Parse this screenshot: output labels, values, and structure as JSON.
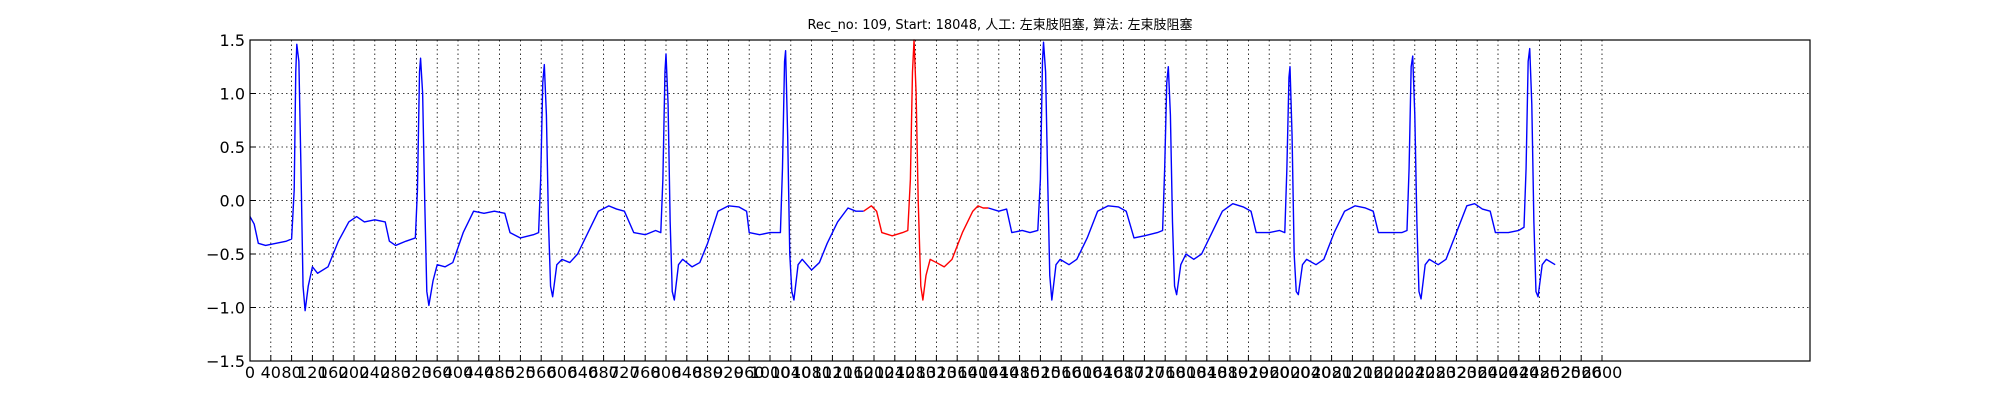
{
  "chart_data": {
    "type": "line",
    "title": "Rec_no: 109, Start: 18048, 人工: 左束肢阻塞, 算法: 左束肢阻塞",
    "xlabel": "",
    "ylabel": "",
    "xlim": [
      0,
      3000
    ],
    "ylim": [
      -1.5,
      1.5
    ],
    "yticks": [
      1.5,
      1.0,
      0.5,
      0.0,
      -0.5,
      -1.0,
      -1.5
    ],
    "ytick_labels": [
      "1.5",
      "1.0",
      "0.5",
      "0.0",
      "−0.5",
      "−1.0",
      "−1.5"
    ],
    "xticks": [
      0,
      40,
      80,
      120,
      160,
      200,
      240,
      280,
      320,
      360,
      400,
      440,
      480,
      520,
      560,
      600,
      640,
      680,
      720,
      760,
      800,
      840,
      880,
      920,
      960,
      1000,
      1040,
      1080,
      1120,
      1160,
      1200,
      1240,
      1280,
      1320,
      1360,
      1400,
      1440,
      1480,
      1520,
      1560,
      1600,
      1640,
      1680,
      1720,
      1760,
      1800,
      1840,
      1880,
      1920,
      1960,
      2000,
      2040,
      2080,
      2120,
      2160,
      2200,
      2240,
      2280,
      2320,
      2360,
      2400,
      2440,
      2480,
      2520,
      2560,
      2600
    ],
    "grid": true,
    "series_colors": {
      "normal": "#0000ff",
      "highlight": "#ff0000"
    },
    "highlight_range": [
      1180,
      1420
    ],
    "series": [
      {
        "color": "#0000ff",
        "points": [
          [
            0,
            -0.15
          ],
          [
            8,
            -0.22
          ],
          [
            16,
            -0.4
          ],
          [
            30,
            -0.42
          ],
          [
            50,
            -0.4
          ],
          [
            70,
            -0.38
          ],
          [
            80,
            -0.36
          ],
          [
            85,
            0.1
          ],
          [
            88,
            1.2
          ],
          [
            90,
            1.46
          ],
          [
            94,
            1.3
          ],
          [
            98,
            0.3
          ],
          [
            102,
            -0.8
          ],
          [
            106,
            -1.03
          ],
          [
            112,
            -0.8
          ],
          [
            120,
            -0.62
          ],
          [
            130,
            -0.68
          ],
          [
            150,
            -0.62
          ],
          [
            170,
            -0.38
          ],
          [
            190,
            -0.2
          ],
          [
            205,
            -0.15
          ],
          [
            220,
            -0.2
          ],
          [
            240,
            -0.18
          ],
          [
            260,
            -0.2
          ],
          [
            268,
            -0.38
          ],
          [
            280,
            -0.42
          ],
          [
            300,
            -0.38
          ],
          [
            318,
            -0.35
          ],
          [
            322,
            0.1
          ],
          [
            326,
            1.2
          ],
          [
            328,
            1.33
          ],
          [
            332,
            1.0
          ],
          [
            336,
            0.0
          ],
          [
            340,
            -0.85
          ],
          [
            344,
            -0.98
          ],
          [
            352,
            -0.75
          ],
          [
            360,
            -0.6
          ],
          [
            375,
            -0.62
          ],
          [
            390,
            -0.58
          ],
          [
            410,
            -0.3
          ],
          [
            430,
            -0.1
          ],
          [
            450,
            -0.12
          ],
          [
            470,
            -0.1
          ],
          [
            490,
            -0.12
          ],
          [
            500,
            -0.3
          ],
          [
            520,
            -0.35
          ],
          [
            545,
            -0.32
          ],
          [
            555,
            -0.3
          ],
          [
            559,
            0.2
          ],
          [
            563,
            1.1
          ],
          [
            566,
            1.27
          ],
          [
            570,
            0.8
          ],
          [
            574,
            -0.2
          ],
          [
            578,
            -0.8
          ],
          [
            582,
            -0.9
          ],
          [
            590,
            -0.6
          ],
          [
            600,
            -0.55
          ],
          [
            615,
            -0.58
          ],
          [
            630,
            -0.5
          ],
          [
            650,
            -0.3
          ],
          [
            670,
            -0.1
          ],
          [
            690,
            -0.05
          ],
          [
            705,
            -0.08
          ],
          [
            720,
            -0.1
          ],
          [
            738,
            -0.3
          ],
          [
            760,
            -0.32
          ],
          [
            780,
            -0.28
          ],
          [
            790,
            -0.3
          ],
          [
            794,
            0.2
          ],
          [
            798,
            1.2
          ],
          [
            800,
            1.37
          ],
          [
            804,
            0.9
          ],
          [
            808,
            -0.2
          ],
          [
            812,
            -0.85
          ],
          [
            816,
            -0.93
          ],
          [
            824,
            -0.6
          ],
          [
            832,
            -0.55
          ],
          [
            850,
            -0.62
          ],
          [
            865,
            -0.58
          ],
          [
            880,
            -0.4
          ],
          [
            900,
            -0.1
          ],
          [
            920,
            -0.05
          ],
          [
            940,
            -0.06
          ],
          [
            955,
            -0.1
          ],
          [
            960,
            -0.3
          ],
          [
            980,
            -0.32
          ],
          [
            1000,
            -0.3
          ],
          [
            1020,
            -0.3
          ],
          [
            1024,
            0.3
          ],
          [
            1028,
            1.3
          ],
          [
            1030,
            1.4
          ],
          [
            1034,
            0.6
          ],
          [
            1038,
            -0.5
          ],
          [
            1042,
            -0.85
          ],
          [
            1046,
            -0.93
          ],
          [
            1054,
            -0.6
          ],
          [
            1062,
            -0.55
          ],
          [
            1080,
            -0.65
          ],
          [
            1095,
            -0.58
          ],
          [
            1110,
            -0.4
          ],
          [
            1130,
            -0.2
          ],
          [
            1150,
            -0.07
          ],
          [
            1165,
            -0.1
          ],
          [
            1180,
            -0.1
          ]
        ]
      },
      {
        "color": "#ff0000",
        "points": [
          [
            1180,
            -0.1
          ],
          [
            1195,
            -0.05
          ],
          [
            1205,
            -0.1
          ],
          [
            1215,
            -0.3
          ],
          [
            1235,
            -0.33
          ],
          [
            1255,
            -0.3
          ],
          [
            1265,
            -0.28
          ],
          [
            1270,
            0.2
          ],
          [
            1274,
            1.2
          ],
          [
            1277,
            1.5
          ],
          [
            1281,
            1.0
          ],
          [
            1285,
            0.0
          ],
          [
            1290,
            -0.8
          ],
          [
            1294,
            -0.93
          ],
          [
            1300,
            -0.7
          ],
          [
            1308,
            -0.55
          ],
          [
            1320,
            -0.58
          ],
          [
            1335,
            -0.62
          ],
          [
            1350,
            -0.55
          ],
          [
            1370,
            -0.3
          ],
          [
            1390,
            -0.1
          ],
          [
            1400,
            -0.05
          ],
          [
            1410,
            -0.07
          ],
          [
            1420,
            -0.07
          ]
        ]
      },
      {
        "color": "#0000ff",
        "points": [
          [
            1420,
            -0.07
          ],
          [
            1440,
            -0.1
          ],
          [
            1455,
            -0.08
          ],
          [
            1465,
            -0.3
          ],
          [
            1485,
            -0.28
          ],
          [
            1500,
            -0.3
          ],
          [
            1515,
            -0.28
          ],
          [
            1520,
            0.2
          ],
          [
            1524,
            1.3
          ],
          [
            1526,
            1.48
          ],
          [
            1530,
            1.2
          ],
          [
            1534,
            0.2
          ],
          [
            1538,
            -0.7
          ],
          [
            1542,
            -0.93
          ],
          [
            1550,
            -0.6
          ],
          [
            1558,
            -0.55
          ],
          [
            1575,
            -0.6
          ],
          [
            1590,
            -0.55
          ],
          [
            1610,
            -0.35
          ],
          [
            1630,
            -0.1
          ],
          [
            1650,
            -0.05
          ],
          [
            1670,
            -0.06
          ],
          [
            1685,
            -0.1
          ],
          [
            1700,
            -0.35
          ],
          [
            1720,
            -0.33
          ],
          [
            1745,
            -0.3
          ],
          [
            1755,
            -0.28
          ],
          [
            1759,
            0.3
          ],
          [
            1763,
            1.1
          ],
          [
            1766,
            1.25
          ],
          [
            1770,
            0.8
          ],
          [
            1774,
            -0.2
          ],
          [
            1778,
            -0.8
          ],
          [
            1782,
            -0.88
          ],
          [
            1790,
            -0.6
          ],
          [
            1800,
            -0.5
          ],
          [
            1815,
            -0.55
          ],
          [
            1830,
            -0.5
          ],
          [
            1850,
            -0.3
          ],
          [
            1870,
            -0.1
          ],
          [
            1890,
            -0.03
          ],
          [
            1910,
            -0.06
          ],
          [
            1925,
            -0.1
          ],
          [
            1935,
            -0.3
          ],
          [
            1960,
            -0.3
          ],
          [
            1980,
            -0.28
          ],
          [
            1990,
            -0.3
          ],
          [
            1994,
            0.3
          ],
          [
            1998,
            1.15
          ],
          [
            2000,
            1.25
          ],
          [
            2004,
            0.6
          ],
          [
            2008,
            -0.5
          ],
          [
            2012,
            -0.85
          ],
          [
            2016,
            -0.88
          ],
          [
            2024,
            -0.6
          ],
          [
            2032,
            -0.55
          ],
          [
            2050,
            -0.6
          ],
          [
            2065,
            -0.55
          ],
          [
            2085,
            -0.3
          ],
          [
            2105,
            -0.1
          ],
          [
            2125,
            -0.05
          ],
          [
            2145,
            -0.07
          ],
          [
            2160,
            -0.1
          ],
          [
            2170,
            -0.3
          ],
          [
            2195,
            -0.3
          ],
          [
            2215,
            -0.3
          ],
          [
            2225,
            -0.28
          ],
          [
            2229,
            0.3
          ],
          [
            2233,
            1.25
          ],
          [
            2236,
            1.35
          ],
          [
            2240,
            0.8
          ],
          [
            2244,
            -0.2
          ],
          [
            2248,
            -0.85
          ],
          [
            2252,
            -0.92
          ],
          [
            2260,
            -0.6
          ],
          [
            2268,
            -0.55
          ],
          [
            2285,
            -0.6
          ],
          [
            2300,
            -0.55
          ],
          [
            2320,
            -0.3
          ],
          [
            2340,
            -0.05
          ],
          [
            2355,
            -0.03
          ],
          [
            2370,
            -0.08
          ],
          [
            2385,
            -0.1
          ],
          [
            2395,
            -0.3
          ],
          [
            2420,
            -0.3
          ],
          [
            2440,
            -0.28
          ],
          [
            2450,
            -0.25
          ],
          [
            2454,
            0.3
          ],
          [
            2458,
            1.3
          ],
          [
            2461,
            1.42
          ],
          [
            2465,
            0.9
          ],
          [
            2469,
            -0.2
          ],
          [
            2473,
            -0.85
          ],
          [
            2477,
            -0.9
          ],
          [
            2485,
            -0.6
          ],
          [
            2493,
            -0.55
          ],
          [
            2510,
            -0.6
          ]
        ]
      }
    ]
  }
}
